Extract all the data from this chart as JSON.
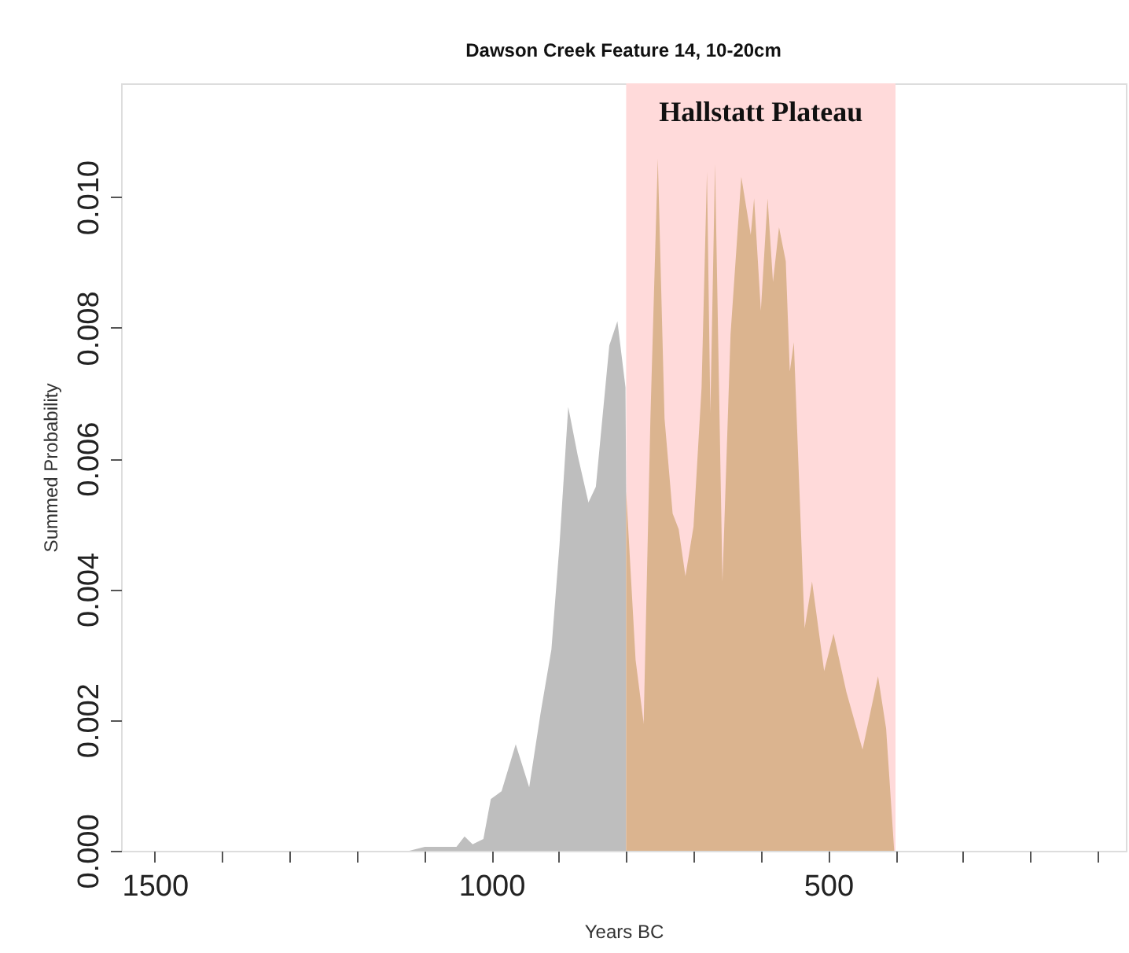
{
  "chart_data": {
    "type": "area",
    "title": "Dawson Creek Feature 14, 10-20cm",
    "xlabel": "Years BC",
    "ylabel": "Summed Probability",
    "series": [
      {
        "color": "#bebebe",
        "x": [
          1122,
          1099,
          1052,
          1040,
          1028,
          1012,
          1001,
          985,
          964,
          944,
          927,
          911,
          899,
          886,
          872,
          856,
          845,
          825,
          813,
          801,
          800
        ],
        "values": [
          0,
          6e-05,
          6e-05,
          0.00022,
          0.0001,
          0.00018,
          0.00079,
          0.00091,
          0.00163,
          0.00097,
          0.00211,
          0.00308,
          0.00468,
          0.00679,
          0.00605,
          0.00533,
          0.00557,
          0.00773,
          0.0081,
          0.00709,
          0.00549
        ]
      },
      {
        "color": "#dbb48f",
        "x": [
          800,
          786,
          774,
          764,
          753,
          743,
          731,
          722,
          712,
          700,
          688,
          680,
          675,
          668,
          657,
          645,
          629,
          615,
          610,
          600,
          590,
          582,
          573,
          563,
          557,
          551,
          535,
          524,
          506,
          492,
          473,
          449,
          426,
          414,
          402
        ],
        "values": [
          0.00549,
          0.00292,
          0.00195,
          0.00661,
          0.01059,
          0.00661,
          0.00516,
          0.00492,
          0.0042,
          0.00496,
          0.00709,
          0.01039,
          0.00669,
          0.01051,
          0.00412,
          0.0079,
          0.01031,
          0.00942,
          0.00998,
          0.00826,
          0.00998,
          0.0087,
          0.00954,
          0.00902,
          0.00733,
          0.00778,
          0.0034,
          0.00412,
          0.00275,
          0.00332,
          0.00243,
          0.00155,
          0.00267,
          0.00187,
          0
        ]
      }
    ],
    "bands": [
      {
        "axis": "x",
        "from": 800,
        "to": 400,
        "label": "Hallstatt Plateau",
        "color": "#ffdada"
      }
    ],
    "xlim": [
      1550,
      58
    ],
    "xticks": [
      1500,
      {
        "value": 1400,
        "label": null
      },
      {
        "value": 1300,
        "label": null
      },
      {
        "value": 1200,
        "label": null
      },
      {
        "value": 1100,
        "label": null
      },
      1000,
      {
        "value": 900,
        "label": null
      },
      {
        "value": 800,
        "label": null
      },
      {
        "value": 700,
        "label": null
      },
      {
        "value": 600,
        "label": null
      },
      500,
      {
        "value": 400,
        "label": null
      },
      {
        "value": 300,
        "label": null
      },
      {
        "value": 200,
        "label": null
      },
      {
        "value": 100,
        "label": null
      }
    ],
    "ylim": [
      0,
      0.01174
    ],
    "yticks": [
      {
        "value": 0,
        "label": "0.000"
      },
      0.002,
      0.004,
      0.006,
      0.008,
      {
        "value": 0.01,
        "label": "0.010"
      }
    ],
    "grid": false
  }
}
